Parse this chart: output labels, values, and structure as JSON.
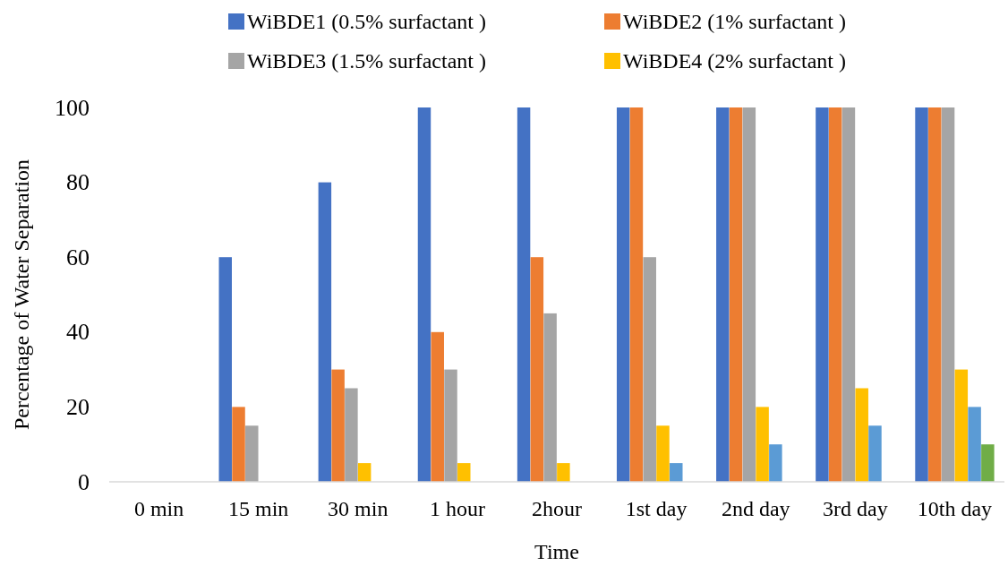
{
  "chart_data": {
    "type": "bar",
    "xlabel": "Time",
    "ylabel": "Percentage of Water Separation",
    "categories": [
      "0 min",
      "15 min",
      "30 min",
      "1 hour",
      "2hour",
      "1st day",
      "2nd day",
      "3rd day",
      "10th day"
    ],
    "series": [
      {
        "name": "WiBDE1 (0.5% surfactant )",
        "color": "#4472c4",
        "values": [
          0,
          60,
          80,
          100,
          100,
          100,
          100,
          100,
          100
        ]
      },
      {
        "name": "WiBDE2 (1% surfactant )",
        "color": "#ed7d31",
        "values": [
          0,
          20,
          30,
          40,
          60,
          100,
          100,
          100,
          100
        ]
      },
      {
        "name": "WiBDE3 (1.5% surfactant )",
        "color": "#a5a5a5",
        "values": [
          0,
          15,
          25,
          30,
          45,
          60,
          100,
          100,
          100
        ]
      },
      {
        "name": "WiBDE4 (2% surfactant )",
        "color": "#ffc000",
        "values": [
          0,
          0,
          5,
          5,
          5,
          15,
          20,
          25,
          30
        ]
      },
      {
        "color": "#5b9bd5",
        "values": [
          0,
          0,
          0,
          0,
          0,
          5,
          10,
          15,
          20
        ]
      },
      {
        "color": "#70ad47",
        "values": [
          0,
          0,
          0,
          0,
          0,
          0,
          0,
          0,
          10
        ]
      }
    ],
    "ylim": [
      0,
      100
    ],
    "yticks": [
      0,
      20,
      40,
      60,
      80,
      100
    ],
    "grid": false,
    "legend": "top"
  }
}
